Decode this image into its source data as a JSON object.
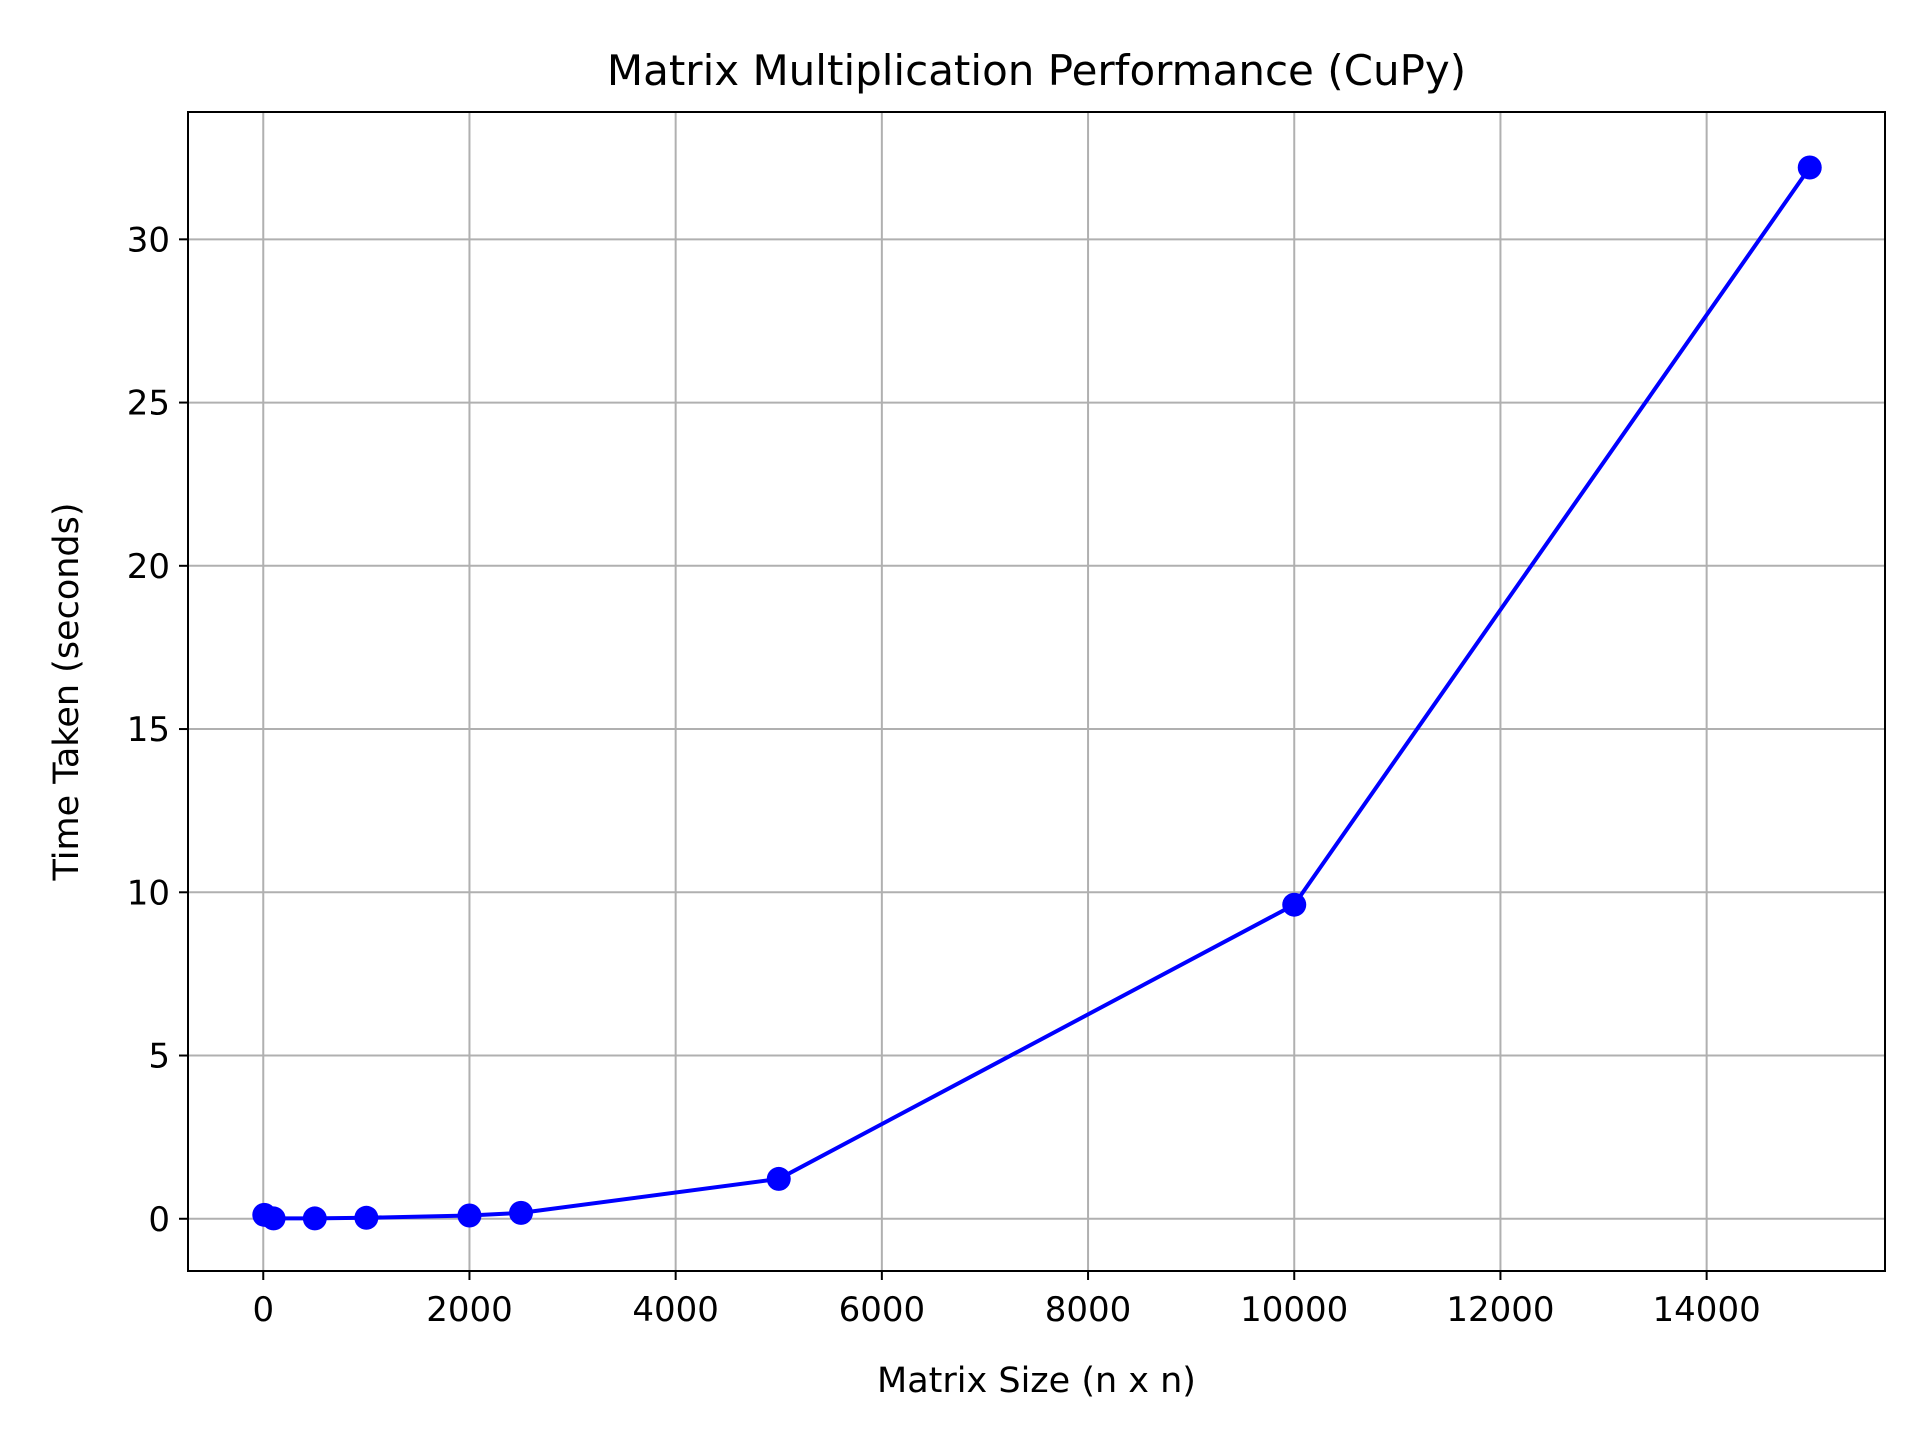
{
  "chart_data": {
    "type": "line",
    "title": "Matrix Multiplication Performance (CuPy)",
    "xlabel": "Matrix Size (n x n)",
    "ylabel": "Time Taken (seconds)",
    "xlim": [
      -730,
      15730
    ],
    "ylim": [
      -1.6,
      33.9
    ],
    "xticks": [
      0,
      2000,
      4000,
      6000,
      8000,
      10000,
      12000,
      14000
    ],
    "yticks": [
      0,
      5,
      10,
      15,
      20,
      25,
      30
    ],
    "grid": true,
    "series": [
      {
        "color": "#0000ff",
        "marker": "circle",
        "x": [
          10,
          100,
          500,
          1000,
          2000,
          2500,
          5000,
          10000,
          15000
        ],
        "y": [
          0.12,
          0.01,
          0.01,
          0.03,
          0.1,
          0.18,
          1.22,
          9.62,
          32.2
        ]
      }
    ]
  }
}
